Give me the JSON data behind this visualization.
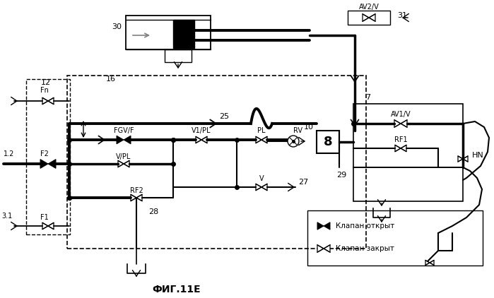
{
  "title": "ФИГ.11Е",
  "legend_open": "Клапан открыт",
  "legend_closed": "Клапан закрыт",
  "bg": "#ffffff"
}
